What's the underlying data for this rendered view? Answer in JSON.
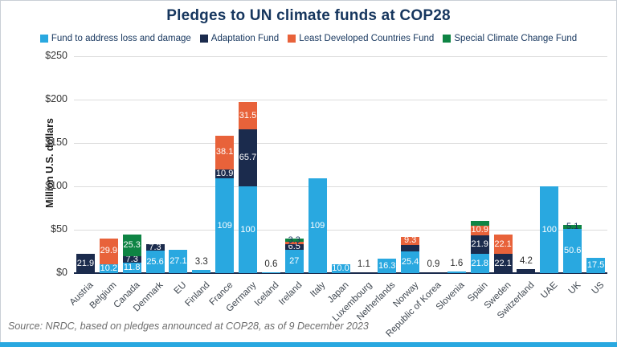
{
  "page": {
    "title": "Pledges to UN climate funds at COP28",
    "source_note": "Source: NRDC, based on pledges announced at COP28, as of 9 December 2023"
  },
  "colors": {
    "loss_damage_blue": "#29a8e0",
    "adaptation_navy": "#1b2b4d",
    "ldcf_orange": "#e8623a",
    "sccf_green": "#0e8444",
    "title_navy": "#16365e",
    "gridline": "#dcdcdc",
    "axis_line": "#1b2b4d",
    "footer_strip_blue": "#29a8e0"
  },
  "chart_data": {
    "type": "bar",
    "stacked": true,
    "title": "Pledges to UN climate funds at COP28",
    "ylabel": "Million U.S. dollars",
    "ylim": [
      0,
      250
    ],
    "grid": true,
    "legend_position": "top",
    "yticks": [
      {
        "v": 0,
        "label": "$0"
      },
      {
        "v": 50,
        "label": "$50"
      },
      {
        "v": 100,
        "label": "$100"
      },
      {
        "v": 150,
        "label": "$150"
      },
      {
        "v": 200,
        "label": "$200"
      },
      {
        "v": 250,
        "label": "$250"
      }
    ],
    "categories": [
      "Austria",
      "Belgium",
      "Canada",
      "Denmark",
      "EU",
      "Finland",
      "France",
      "Germany",
      "Iceland",
      "Ireland",
      "Italy",
      "Japan",
      "Luxembourg",
      "Netherlands",
      "Norway",
      "Republic of Korea",
      "Slovenia",
      "Spain",
      "Sweden",
      "Switzerland",
      "UAE",
      "UK",
      "US"
    ],
    "series": [
      {
        "name": "Fund to address loss and damage",
        "color": "#29a8e0",
        "values": [
          0,
          10.2,
          11.8,
          25.6,
          27.1,
          3.3,
          109,
          100,
          0.6,
          27,
          109,
          10.0,
          0,
          16.3,
          25.4,
          0,
          1.6,
          21.8,
          0,
          0,
          100,
          50.6,
          17.5
        ],
        "bar_labels": [
          "",
          "10.2",
          "11.8",
          "25.6",
          "27.1",
          "",
          "109",
          "100",
          "",
          "27",
          "109",
          "10.0",
          "",
          "16.3",
          "25.4",
          "",
          "",
          "21.8",
          "",
          "",
          "100",
          "50.6",
          "17.5"
        ]
      },
      {
        "name": "Adaptation Fund",
        "color": "#1b2b4d",
        "values": [
          21.9,
          0,
          7.3,
          7.3,
          0,
          0,
          10.9,
          65.7,
          0,
          6.5,
          0,
          0,
          1.1,
          0,
          7,
          0.9,
          0,
          21.9,
          22.1,
          4.2,
          0,
          0,
          0
        ],
        "bar_labels": [
          "21.9",
          "",
          "7.3",
          "7.3",
          "",
          "",
          "10.9",
          "65.7",
          "",
          "6.5",
          "",
          "",
          "",
          "",
          "",
          "",
          "",
          "21.9",
          "22.1",
          "",
          "",
          "",
          ""
        ]
      },
      {
        "name": "Least Developed Countries Fund",
        "color": "#e8623a",
        "values": [
          0,
          29.9,
          0,
          0,
          0,
          0,
          38.1,
          31.5,
          0,
          2.7,
          0,
          0,
          0,
          0,
          9.3,
          0,
          0,
          10.9,
          22.1,
          0,
          0,
          0,
          0
        ],
        "bar_labels": [
          "",
          "29.9",
          "",
          "",
          "",
          "",
          "38.1",
          "31.5",
          "",
          "2.7",
          "",
          "",
          "",
          "",
          "9.3",
          "",
          "",
          "10.9",
          "22.1",
          "",
          "",
          "",
          ""
        ]
      },
      {
        "name": "Special Climate Change Fund",
        "color": "#0e8444",
        "values": [
          0,
          0,
          25.3,
          0,
          0,
          0,
          0,
          0,
          0,
          3.3,
          0,
          0,
          0,
          0,
          0,
          0,
          0,
          6,
          0,
          0,
          0,
          5.1,
          0
        ],
        "bar_labels": [
          "",
          "",
          "25.3",
          "",
          "",
          "",
          "",
          "",
          "",
          "3.3",
          "",
          "",
          "",
          "",
          "",
          "",
          "",
          "",
          "",
          "",
          "",
          "5.1",
          ""
        ]
      }
    ],
    "above_bar_labels": [
      "",
      "",
      "",
      "",
      "",
      "3.3",
      "",
      "",
      "0.6",
      "",
      "",
      "",
      "1.1",
      "",
      "",
      "0.9",
      "1.6",
      "",
      "",
      "4.2",
      "",
      "",
      ""
    ]
  }
}
